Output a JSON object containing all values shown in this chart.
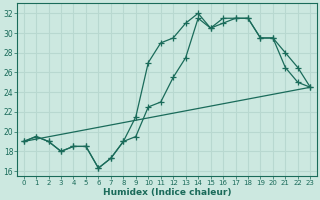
{
  "xlabel": "Humidex (Indice chaleur)",
  "ylabel": "",
  "xlim": [
    -0.5,
    23.5
  ],
  "ylim": [
    15.5,
    33.0
  ],
  "xticks": [
    0,
    1,
    2,
    3,
    4,
    5,
    6,
    7,
    8,
    9,
    10,
    11,
    12,
    13,
    14,
    15,
    16,
    17,
    18,
    19,
    20,
    21,
    22,
    23
  ],
  "yticks": [
    16,
    18,
    20,
    22,
    24,
    26,
    28,
    30,
    32
  ],
  "bg_color": "#cce8e0",
  "line_color": "#1a6b5a",
  "grid_color": "#b8d8d0",
  "series1_x": [
    0,
    1,
    2,
    3,
    4,
    5,
    6,
    7,
    8,
    9,
    10,
    11,
    12,
    13,
    14,
    15,
    16,
    17,
    18,
    19,
    20,
    21,
    22,
    23
  ],
  "series1_y": [
    19.0,
    19.5,
    19.0,
    18.0,
    18.5,
    18.5,
    16.3,
    17.3,
    19.0,
    21.5,
    27.0,
    29.0,
    29.5,
    31.0,
    32.0,
    30.5,
    31.5,
    31.5,
    31.5,
    29.5,
    29.5,
    28.0,
    26.5,
    24.5
  ],
  "series2_x": [
    0,
    1,
    2,
    3,
    4,
    5,
    6,
    7,
    8,
    9,
    10,
    11,
    12,
    13,
    14,
    15,
    16,
    17,
    18,
    19,
    20,
    21,
    22,
    23
  ],
  "series2_y": [
    19.0,
    19.5,
    19.0,
    18.0,
    18.5,
    18.5,
    16.3,
    17.3,
    19.0,
    19.5,
    22.5,
    23.0,
    25.5,
    27.5,
    31.5,
    30.5,
    31.0,
    31.5,
    31.5,
    29.5,
    29.5,
    26.5,
    25.0,
    24.5
  ],
  "series3_x": [
    0,
    23
  ],
  "series3_y": [
    19.0,
    24.5
  ]
}
